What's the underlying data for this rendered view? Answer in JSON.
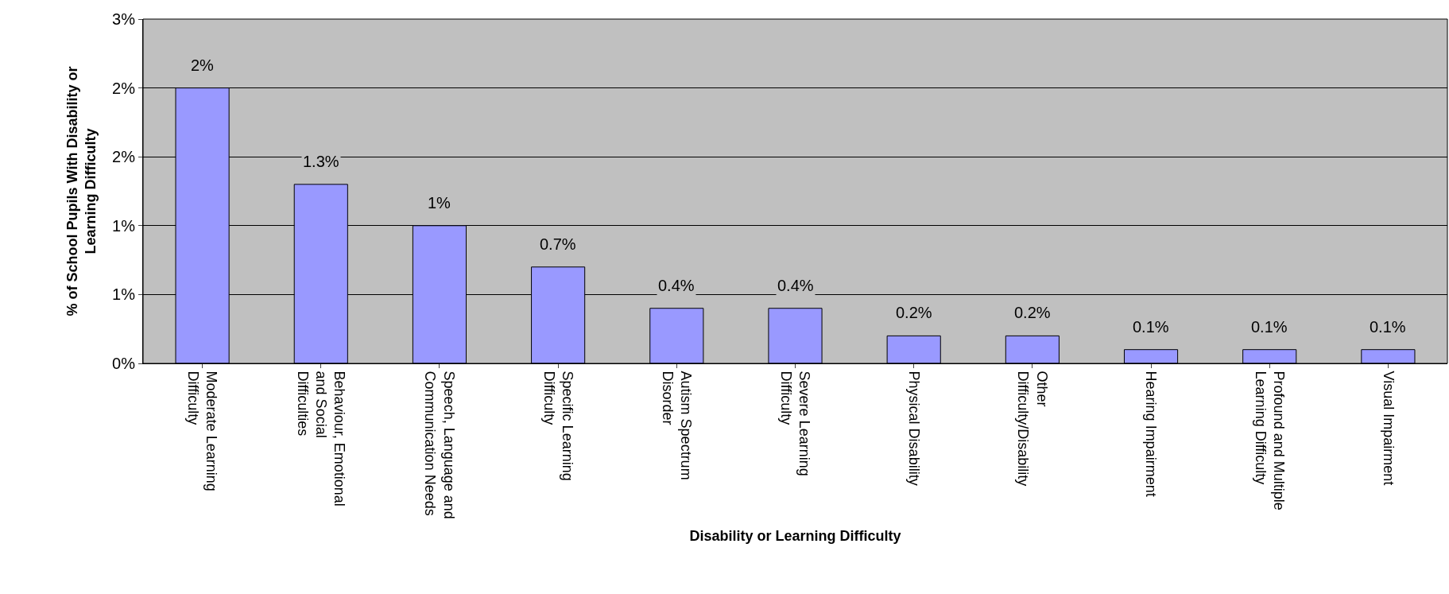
{
  "chart_data": {
    "type": "bar",
    "xlabel": "Disability or Learning Difficulty",
    "ylabel": "% of School Pupils With Disability or Learning Difficulty",
    "categories": [
      "Moderate Learning Difficulty",
      "Behaviour, Emotional and Social Difficulties",
      "Speech, Language and Communication Needs",
      "Specific Learning Difficulty",
      "Autism Spectrum Disorder",
      "Severe Learning Difficulty",
      "Physical Disability",
      "Other Difficulty/Disability",
      "Hearing Impairment",
      "Profound and Multiple Learning Difficulty",
      "Visual Impairment"
    ],
    "values": [
      2,
      1.3,
      1,
      0.7,
      0.4,
      0.4,
      0.2,
      0.2,
      0.1,
      0.1,
      0.1
    ],
    "value_labels": [
      "2%",
      "1.3%",
      "1%",
      "0.7%",
      "0.4%",
      "0.4%",
      "0.2%",
      "0.2%",
      "0.1%",
      "0.1%",
      "0.1%"
    ],
    "color": "#9999ff",
    "ylim": [
      0,
      2.5
    ],
    "yticks": [
      {
        "value": 0,
        "label": "0%"
      },
      {
        "value": 0.5,
        "label": "1%"
      },
      {
        "value": 1,
        "label": "1%"
      },
      {
        "value": 1.5,
        "label": "2%"
      },
      {
        "value": 2,
        "label": "2%"
      },
      {
        "value": 2.5,
        "label": "3%"
      }
    ],
    "grid": "y",
    "legend": false
  }
}
